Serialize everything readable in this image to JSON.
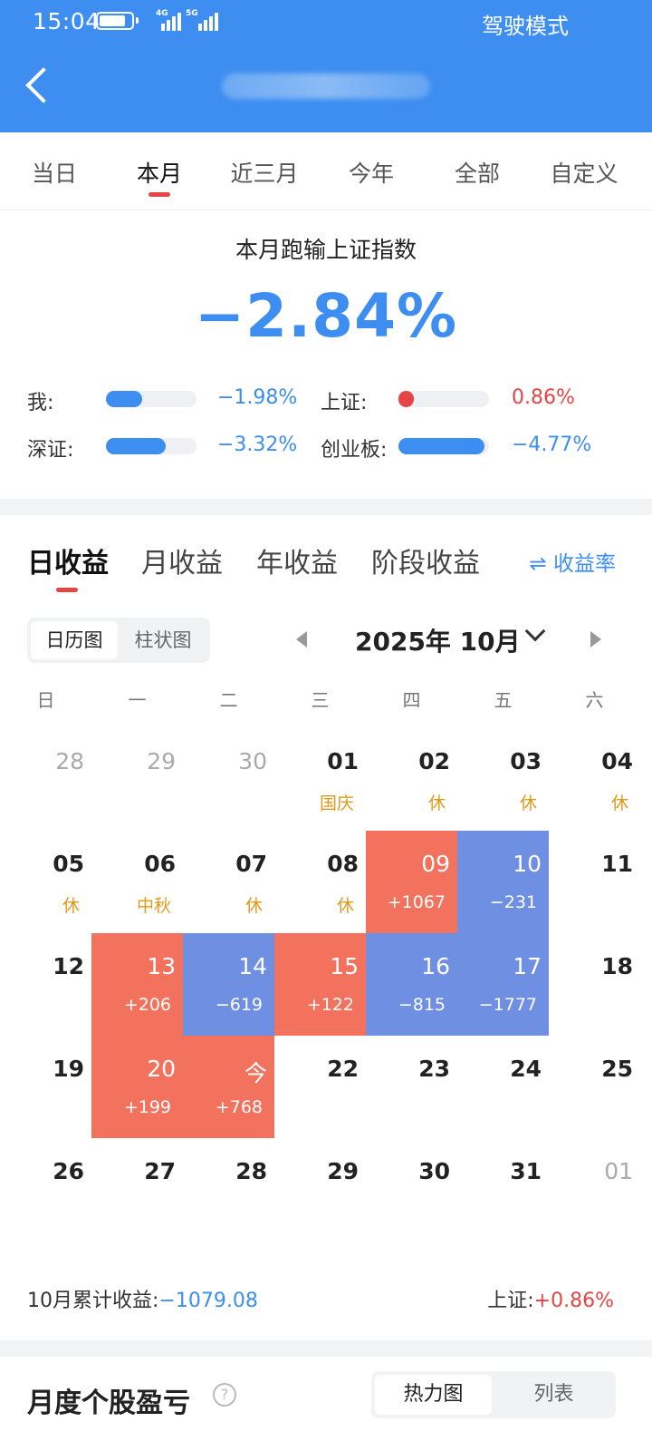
{
  "status": {
    "time": "15:04",
    "battery_level": 0.85,
    "signal1_tag": "4G",
    "signal2_tag": "5G",
    "mode_label": "驾驶模式"
  },
  "range_tabs": [
    {
      "label": "当日"
    },
    {
      "label": "本月"
    },
    {
      "label": "近三月"
    },
    {
      "label": "今年"
    },
    {
      "label": "全部"
    },
    {
      "label": "自定义"
    }
  ],
  "active_range_tab": "本月",
  "summary": {
    "title": "本月跑输上证指数",
    "value": "−2.84%",
    "comparisons": [
      {
        "label": "我:",
        "value": "−1.98%",
        "pct": -1.98,
        "color": "#3d8ef0"
      },
      {
        "label": "上证:",
        "value": "0.86%",
        "pct": 0.86,
        "color": "#e64545"
      },
      {
        "label": "深证:",
        "value": "−3.32%",
        "pct": -3.32,
        "color": "#3d8ef0"
      },
      {
        "label": "创业板:",
        "value": "−4.77%",
        "pct": -4.77,
        "color": "#3d8ef0"
      }
    ]
  },
  "profit_tabs": [
    {
      "label": "日收益"
    },
    {
      "label": "月收益"
    },
    {
      "label": "年收益"
    },
    {
      "label": "阶段收益"
    }
  ],
  "rate_button": "⇌ 收益率",
  "view_toggle": {
    "calendar": "日历图",
    "bar": "柱状图"
  },
  "month_label": "2025年 10月",
  "weekdays": [
    "日",
    "一",
    "二",
    "三",
    "四",
    "五",
    "六"
  ],
  "calendar": [
    [
      {
        "d": "28",
        "dim": true
      },
      {
        "d": "29",
        "dim": true
      },
      {
        "d": "30",
        "dim": true
      },
      {
        "d": "01",
        "sub": "国庆",
        "t": "hol"
      },
      {
        "d": "02",
        "sub": "休",
        "t": "hol"
      },
      {
        "d": "03",
        "sub": "休",
        "t": "hol"
      },
      {
        "d": "04",
        "sub": "休",
        "t": "hol"
      }
    ],
    [
      {
        "d": "05",
        "sub": "休",
        "t": "hol"
      },
      {
        "d": "06",
        "sub": "中秋",
        "t": "hol"
      },
      {
        "d": "07",
        "sub": "休",
        "t": "hol"
      },
      {
        "d": "08",
        "sub": "休",
        "t": "hol"
      },
      {
        "d": "09",
        "sub": "+1067",
        "t": "pos"
      },
      {
        "d": "10",
        "sub": "−231",
        "t": "neg"
      },
      {
        "d": "11"
      }
    ],
    [
      {
        "d": "12"
      },
      {
        "d": "13",
        "sub": "+206",
        "t": "pos"
      },
      {
        "d": "14",
        "sub": "−619",
        "t": "neg"
      },
      {
        "d": "15",
        "sub": "+122",
        "t": "pos"
      },
      {
        "d": "16",
        "sub": "−815",
        "t": "neg"
      },
      {
        "d": "17",
        "sub": "−1777",
        "t": "neg"
      },
      {
        "d": "18"
      }
    ],
    [
      {
        "d": "19"
      },
      {
        "d": "20",
        "sub": "+199",
        "t": "pos"
      },
      {
        "d": "今",
        "sub": "+768",
        "t": "pos"
      },
      {
        "d": "22"
      },
      {
        "d": "23"
      },
      {
        "d": "24"
      },
      {
        "d": "25"
      }
    ],
    [
      {
        "d": "26"
      },
      {
        "d": "27"
      },
      {
        "d": "28"
      },
      {
        "d": "29"
      },
      {
        "d": "30"
      },
      {
        "d": "31"
      },
      {
        "d": "01",
        "dim": true
      }
    ]
  ],
  "cumulative": {
    "label": "10月累计收益:",
    "value": "−1079.08"
  },
  "index_change": {
    "label": "上证:",
    "value": "+0.86%"
  },
  "bottom": {
    "title": "月度个股盈亏",
    "help": "?",
    "heatmap": "热力图",
    "list": "列表"
  }
}
